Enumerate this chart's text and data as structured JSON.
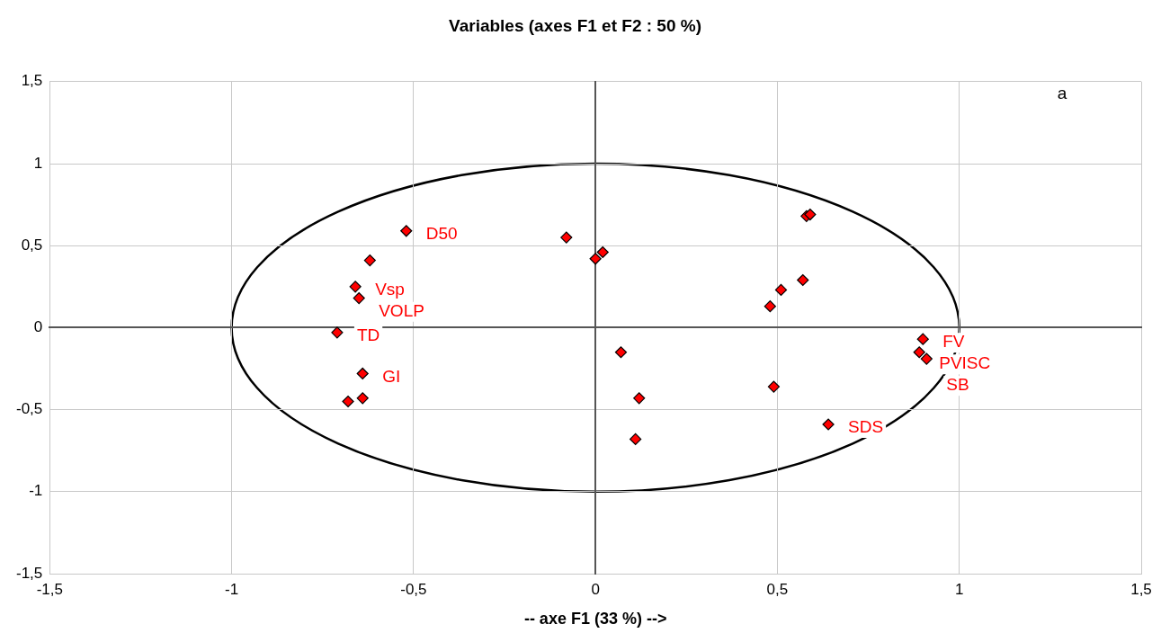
{
  "chart_data": {
    "type": "scatter",
    "title": "Variables (axes F1 et F2 : 50 %)",
    "xlabel": "-- axe F1 (33 %) -->",
    "xlim": [
      -1.5,
      1.5
    ],
    "xticks": [
      {
        "value": -1.5,
        "label": "-1,5"
      },
      -1,
      {
        "value": -0.5,
        "label": "-0,5"
      },
      0,
      {
        "value": 0.5,
        "label": "0,5"
      },
      1,
      {
        "value": 1.5,
        "label": "1,5"
      }
    ],
    "ylim": [
      -1.5,
      1.5
    ],
    "yticks": [
      {
        "value": -1.5,
        "label": "-1,5"
      },
      -1,
      {
        "value": -0.5,
        "label": "-0,5"
      },
      0,
      {
        "value": 0.5,
        "label": "0,5"
      },
      1,
      {
        "value": 1.5,
        "label": "1,5"
      }
    ],
    "grid": true,
    "legend": false,
    "series": [
      {
        "color": "#ff0000",
        "marker": "diamond",
        "x": [
          -0.52,
          -0.62,
          -0.66,
          -0.65,
          -0.71,
          -0.64,
          -0.64,
          -0.68,
          -0.08,
          0.0,
          0.02,
          0.07,
          0.12,
          0.11,
          0.48,
          0.51,
          0.57,
          0.49,
          0.64,
          0.58,
          0.59,
          0.9,
          0.89,
          0.91
        ],
        "values": [
          0.59,
          0.41,
          0.25,
          0.18,
          -0.03,
          -0.28,
          -0.43,
          -0.45,
          0.55,
          0.42,
          0.46,
          -0.15,
          -0.43,
          -0.68,
          0.13,
          0.23,
          0.29,
          -0.36,
          -0.59,
          0.68,
          0.69,
          -0.07,
          -0.15,
          -0.19
        ]
      }
    ],
    "annotations": [
      {
        "text": "D50",
        "x": -0.52,
        "y": 0.59
      },
      {
        "text": "Vsp",
        "x": -0.66,
        "y": 0.25
      },
      {
        "text": "VOLP",
        "x": -0.65,
        "y": 0.18
      },
      {
        "text": "TD",
        "x": -0.71,
        "y": -0.03
      },
      {
        "text": "GI",
        "x": -0.64,
        "y": -0.28
      },
      {
        "text": "FV",
        "x": 0.9,
        "y": -0.07
      },
      {
        "text": "PVISC",
        "x": 0.89,
        "y": -0.15
      },
      {
        "text": "SB",
        "x": 0.91,
        "y": -0.19
      },
      {
        "text": "SDS",
        "x": 0.64,
        "y": -0.59
      },
      "a"
    ]
  }
}
